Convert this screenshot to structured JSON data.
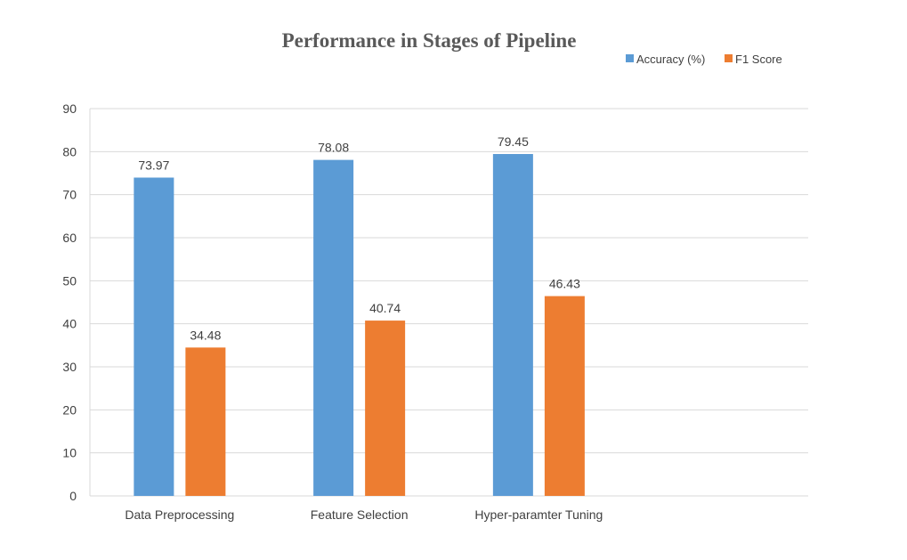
{
  "chart_data": {
    "type": "bar",
    "title": "Performance in Stages of Pipeline",
    "categories": [
      "Data Preprocessing",
      "Feature Selection",
      "Hyper-paramter Tuning",
      ""
    ],
    "series": [
      {
        "name": "Accuracy (%)",
        "color": "#5B9BD5",
        "values": [
          73.97,
          78.08,
          79.45,
          null
        ]
      },
      {
        "name": "F1 Score",
        "color": "#ED7D31",
        "values": [
          34.48,
          40.74,
          46.43,
          null
        ]
      }
    ],
    "data_labels": [
      [
        "73.97",
        "78.08",
        "79.45"
      ],
      [
        "34.48",
        "40.74",
        "46.43"
      ]
    ],
    "ylim": [
      0,
      90
    ],
    "yticks": [
      "0",
      "10",
      "20",
      "30",
      "40",
      "50",
      "60",
      "70",
      "80",
      "90"
    ],
    "grid": true,
    "legend_position": "top-right",
    "xlabel": "",
    "ylabel": ""
  }
}
